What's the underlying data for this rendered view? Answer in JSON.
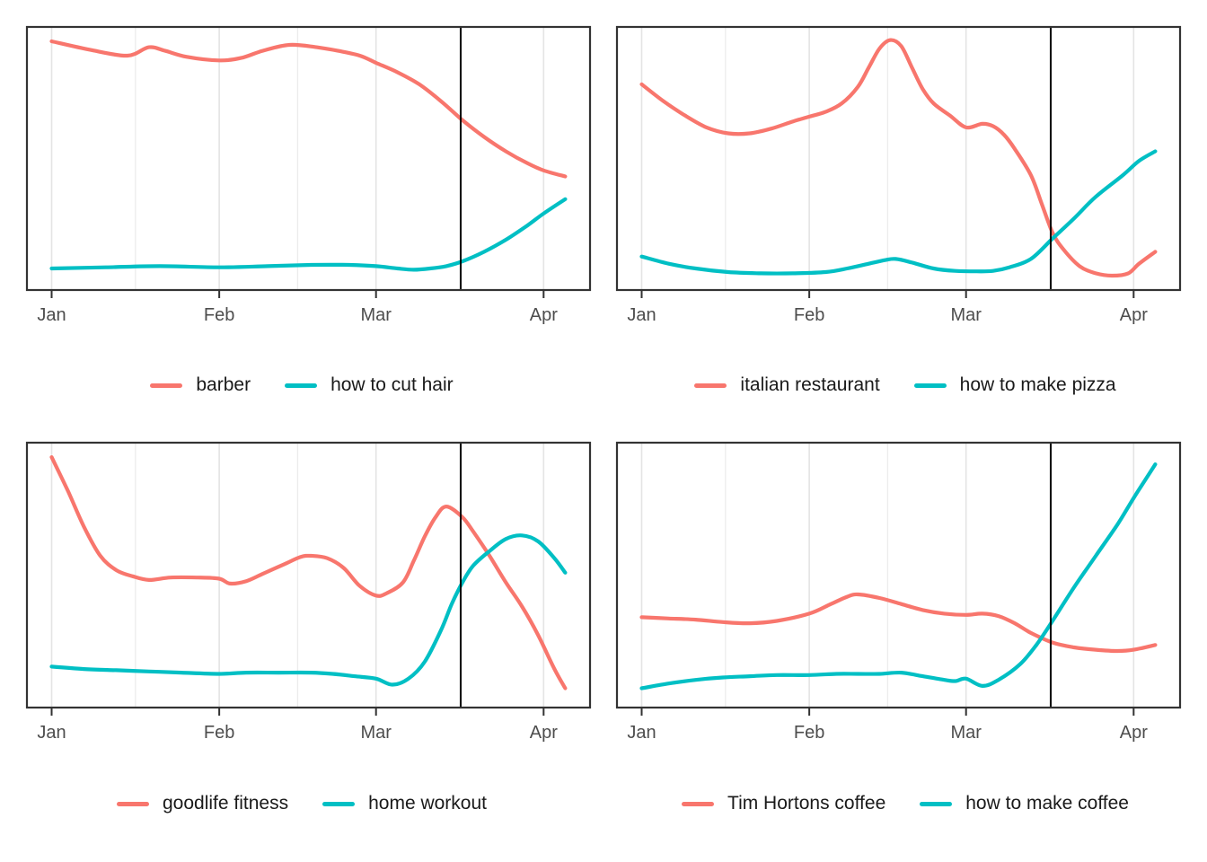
{
  "figure": {
    "description_visible_text_only": true,
    "event_line_color": "#000000",
    "panel_border_color": "#333333",
    "grid_major_color": "#e4e4e4",
    "grid_minor_color": "#ececec",
    "axis_text_color": "#4d4d4d",
    "legend_text_color": "#1a1a1a",
    "background_color": "#ffffff"
  },
  "charts": [
    {
      "id": "barber-vs-how-to-cut-hair",
      "position": "top-left",
      "chart_data": {
        "type": "line",
        "x_unit": "days_from_jan_1",
        "x_range": [
          0,
          95
        ],
        "x_tick_days": [
          0,
          31,
          60,
          91
        ],
        "x_tick_labels": [
          "Jan",
          "Feb",
          "Mar",
          "Apr"
        ],
        "x_minor_tick_days": [
          15.5,
          45.5,
          75.5
        ],
        "ylim": [
          0,
          100
        ],
        "grid": "vertical-only",
        "legend_position": "bottom",
        "event_line_day": 76,
        "series": [
          {
            "name": "barber",
            "color": "#F8766D",
            "points": [
              [
                0,
                99
              ],
              [
                7,
                95.5
              ],
              [
                14,
                93
              ],
              [
                18,
                96.5
              ],
              [
                21,
                95
              ],
              [
                25,
                92.5
              ],
              [
                31,
                91
              ],
              [
                35,
                92
              ],
              [
                39,
                95
              ],
              [
                44,
                97.5
              ],
              [
                49,
                96.5
              ],
              [
                53,
                95
              ],
              [
                57,
                93
              ],
              [
                60,
                90
              ],
              [
                64,
                86
              ],
              [
                68,
                81
              ],
              [
                72,
                74
              ],
              [
                76,
                66
              ],
              [
                80,
                59
              ],
              [
                84,
                53
              ],
              [
                88,
                48
              ],
              [
                91,
                45
              ],
              [
                95,
                42.5
              ]
            ]
          },
          {
            "name": "how to cut hair",
            "color": "#00BFC4",
            "points": [
              [
                0,
                4
              ],
              [
                10,
                4.5
              ],
              [
                20,
                5
              ],
              [
                31,
                4.5
              ],
              [
                40,
                5
              ],
              [
                48,
                5.5
              ],
              [
                55,
                5.5
              ],
              [
                60,
                5
              ],
              [
                64,
                4
              ],
              [
                67,
                3.5
              ],
              [
                70,
                4
              ],
              [
                73,
                5
              ],
              [
                76,
                7
              ],
              [
                80,
                11
              ],
              [
                84,
                16
              ],
              [
                88,
                22
              ],
              [
                91,
                27
              ],
              [
                95,
                33
              ]
            ]
          }
        ]
      }
    },
    {
      "id": "italian-restaurant-vs-how-to-make-pizza",
      "position": "top-right",
      "chart_data": {
        "type": "line",
        "x_unit": "days_from_jan_1",
        "x_range": [
          0,
          95
        ],
        "x_tick_days": [
          0,
          31,
          60,
          91
        ],
        "x_tick_labels": [
          "Jan",
          "Feb",
          "Mar",
          "Apr"
        ],
        "x_minor_tick_days": [
          15.5,
          45.5,
          75.5
        ],
        "ylim": [
          0,
          100
        ],
        "grid": "vertical-only",
        "legend_position": "bottom",
        "event_line_day": 76,
        "series": [
          {
            "name": "italian restaurant",
            "color": "#F8766D",
            "points": [
              [
                0,
                81
              ],
              [
                4,
                74
              ],
              [
                8,
                68
              ],
              [
                12,
                63
              ],
              [
                16,
                60.5
              ],
              [
                20,
                60.5
              ],
              [
                24,
                62.5
              ],
              [
                28,
                65.5
              ],
              [
                31,
                67.5
              ],
              [
                34,
                69.5
              ],
              [
                37,
                73
              ],
              [
                40,
                80
              ],
              [
                42,
                88
              ],
              [
                44,
                96
              ],
              [
                46,
                99.5
              ],
              [
                48,
                97
              ],
              [
                50,
                88
              ],
              [
                52,
                79
              ],
              [
                54,
                73
              ],
              [
                57,
                68
              ],
              [
                60,
                63
              ],
              [
                63,
                64.5
              ],
              [
                65,
                63.5
              ],
              [
                67,
                60
              ],
              [
                69,
                54
              ],
              [
                72,
                43
              ],
              [
                74,
                31
              ],
              [
                76,
                19
              ],
              [
                78,
                12
              ],
              [
                81,
                5
              ],
              [
                84,
                2
              ],
              [
                87,
                1
              ],
              [
                90,
                2
              ],
              [
                92,
                6
              ],
              [
                95,
                11
              ]
            ]
          },
          {
            "name": "how to make pizza",
            "color": "#00BFC4",
            "points": [
              [
                0,
                9
              ],
              [
                5,
                6
              ],
              [
                10,
                4
              ],
              [
                16,
                2.5
              ],
              [
                22,
                2
              ],
              [
                28,
                2
              ],
              [
                34,
                2.5
              ],
              [
                38,
                4
              ],
              [
                42,
                6
              ],
              [
                45,
                7.5
              ],
              [
                47,
                8
              ],
              [
                50,
                6.5
              ],
              [
                54,
                4
              ],
              [
                58,
                3
              ],
              [
                62,
                2.8
              ],
              [
                65,
                3
              ],
              [
                68,
                4.5
              ],
              [
                72,
                8
              ],
              [
                76,
                16.5
              ],
              [
                80,
                25
              ],
              [
                84,
                34
              ],
              [
                89,
                43
              ],
              [
                92,
                49
              ],
              [
                95,
                53
              ]
            ]
          }
        ]
      }
    },
    {
      "id": "goodlife-fitness-vs-home-workout",
      "position": "bottom-left",
      "chart_data": {
        "type": "line",
        "x_unit": "days_from_jan_1",
        "x_range": [
          0,
          95
        ],
        "x_tick_days": [
          0,
          31,
          60,
          91
        ],
        "x_tick_labels": [
          "Jan",
          "Feb",
          "Mar",
          "Apr"
        ],
        "x_minor_tick_days": [
          15.5,
          45.5,
          75.5
        ],
        "ylim": [
          0,
          100
        ],
        "grid": "vertical-only",
        "legend_position": "bottom",
        "event_line_day": 76,
        "series": [
          {
            "name": "goodlife fitness",
            "color": "#F8766D",
            "points": [
              [
                0,
                99
              ],
              [
                3,
                85
              ],
              [
                6,
                70
              ],
              [
                9,
                58
              ],
              [
                12,
                52
              ],
              [
                15,
                49.5
              ],
              [
                18,
                48
              ],
              [
                22,
                49
              ],
              [
                27,
                49
              ],
              [
                31,
                48.5
              ],
              [
                33,
                46.5
              ],
              [
                36,
                47.5
              ],
              [
                39,
                50.5
              ],
              [
                43,
                54.5
              ],
              [
                46,
                57.5
              ],
              [
                48,
                58
              ],
              [
                51,
                57
              ],
              [
                54,
                53
              ],
              [
                57,
                45.5
              ],
              [
                60,
                41.5
              ],
              [
                62,
                42.5
              ],
              [
                65,
                47
              ],
              [
                67,
                56
              ],
              [
                69,
                66
              ],
              [
                71,
                74
              ],
              [
                73,
                78.5
              ],
              [
                76,
                74
              ],
              [
                78,
                68
              ],
              [
                81,
                58
              ],
              [
                84,
                47
              ],
              [
                87,
                37
              ],
              [
                90,
                25
              ],
              [
                93,
                11
              ],
              [
                95,
                3
              ]
            ]
          },
          {
            "name": "home workout",
            "color": "#00BFC4",
            "points": [
              [
                0,
                12
              ],
              [
                6,
                11
              ],
              [
                12,
                10.5
              ],
              [
                18,
                10
              ],
              [
                24,
                9.5
              ],
              [
                31,
                9
              ],
              [
                36,
                9.5
              ],
              [
                42,
                9.5
              ],
              [
                48,
                9.5
              ],
              [
                52,
                9
              ],
              [
                56,
                8
              ],
              [
                60,
                7
              ],
              [
                63,
                4.5
              ],
              [
                66,
                7
              ],
              [
                69,
                14
              ],
              [
                72,
                27
              ],
              [
                74,
                38
              ],
              [
                76,
                47
              ],
              [
                78,
                54
              ],
              [
                81,
                60
              ],
              [
                84,
                65
              ],
              [
                87,
                66.5
              ],
              [
                90,
                64
              ],
              [
                93,
                57
              ],
              [
                95,
                51
              ]
            ]
          }
        ]
      }
    },
    {
      "id": "tim-hortons-coffee-vs-how-to-make-coffee",
      "position": "bottom-right",
      "chart_data": {
        "type": "line",
        "x_unit": "days_from_jan_1",
        "x_range": [
          0,
          95
        ],
        "x_tick_days": [
          0,
          31,
          60,
          91
        ],
        "x_tick_labels": [
          "Jan",
          "Feb",
          "Mar",
          "Apr"
        ],
        "x_minor_tick_days": [
          15.5,
          45.5,
          75.5
        ],
        "ylim": [
          0,
          100
        ],
        "grid": "vertical-only",
        "legend_position": "bottom",
        "event_line_day": 76,
        "series": [
          {
            "name": "Tim Hortons coffee",
            "color": "#F8766D",
            "points": [
              [
                0,
                32.5
              ],
              [
                5,
                32
              ],
              [
                10,
                31.5
              ],
              [
                15,
                30.5
              ],
              [
                20,
                30
              ],
              [
                25,
                31
              ],
              [
                31,
                34
              ],
              [
                35,
                38
              ],
              [
                38,
                41
              ],
              [
                40,
                42
              ],
              [
                44,
                40.5
              ],
              [
                48,
                38
              ],
              [
                52,
                35.5
              ],
              [
                56,
                34
              ],
              [
                60,
                33.5
              ],
              [
                63,
                34
              ],
              [
                66,
                33
              ],
              [
                69,
                30
              ],
              [
                72,
                26
              ],
              [
                76,
                22
              ],
              [
                80,
                20
              ],
              [
                84,
                19
              ],
              [
                88,
                18.5
              ],
              [
                91,
                19
              ],
              [
                95,
                21
              ]
            ]
          },
          {
            "name": "how to make coffee",
            "color": "#00BFC4",
            "points": [
              [
                0,
                3
              ],
              [
                5,
                5
              ],
              [
                10,
                6.5
              ],
              [
                15,
                7.5
              ],
              [
                20,
                8
              ],
              [
                25,
                8.5
              ],
              [
                31,
                8.5
              ],
              [
                36,
                9
              ],
              [
                40,
                9
              ],
              [
                44,
                9
              ],
              [
                48,
                9.5
              ],
              [
                52,
                8
              ],
              [
                56,
                6.5
              ],
              [
                58,
                6
              ],
              [
                60,
                7
              ],
              [
                63,
                4
              ],
              [
                66,
                6.5
              ],
              [
                70,
                13
              ],
              [
                73,
                21
              ],
              [
                76,
                31
              ],
              [
                80,
                45
              ],
              [
                84,
                58
              ],
              [
                88,
                71
              ],
              [
                91,
                82
              ],
              [
                95,
                96
              ]
            ]
          }
        ]
      }
    }
  ]
}
